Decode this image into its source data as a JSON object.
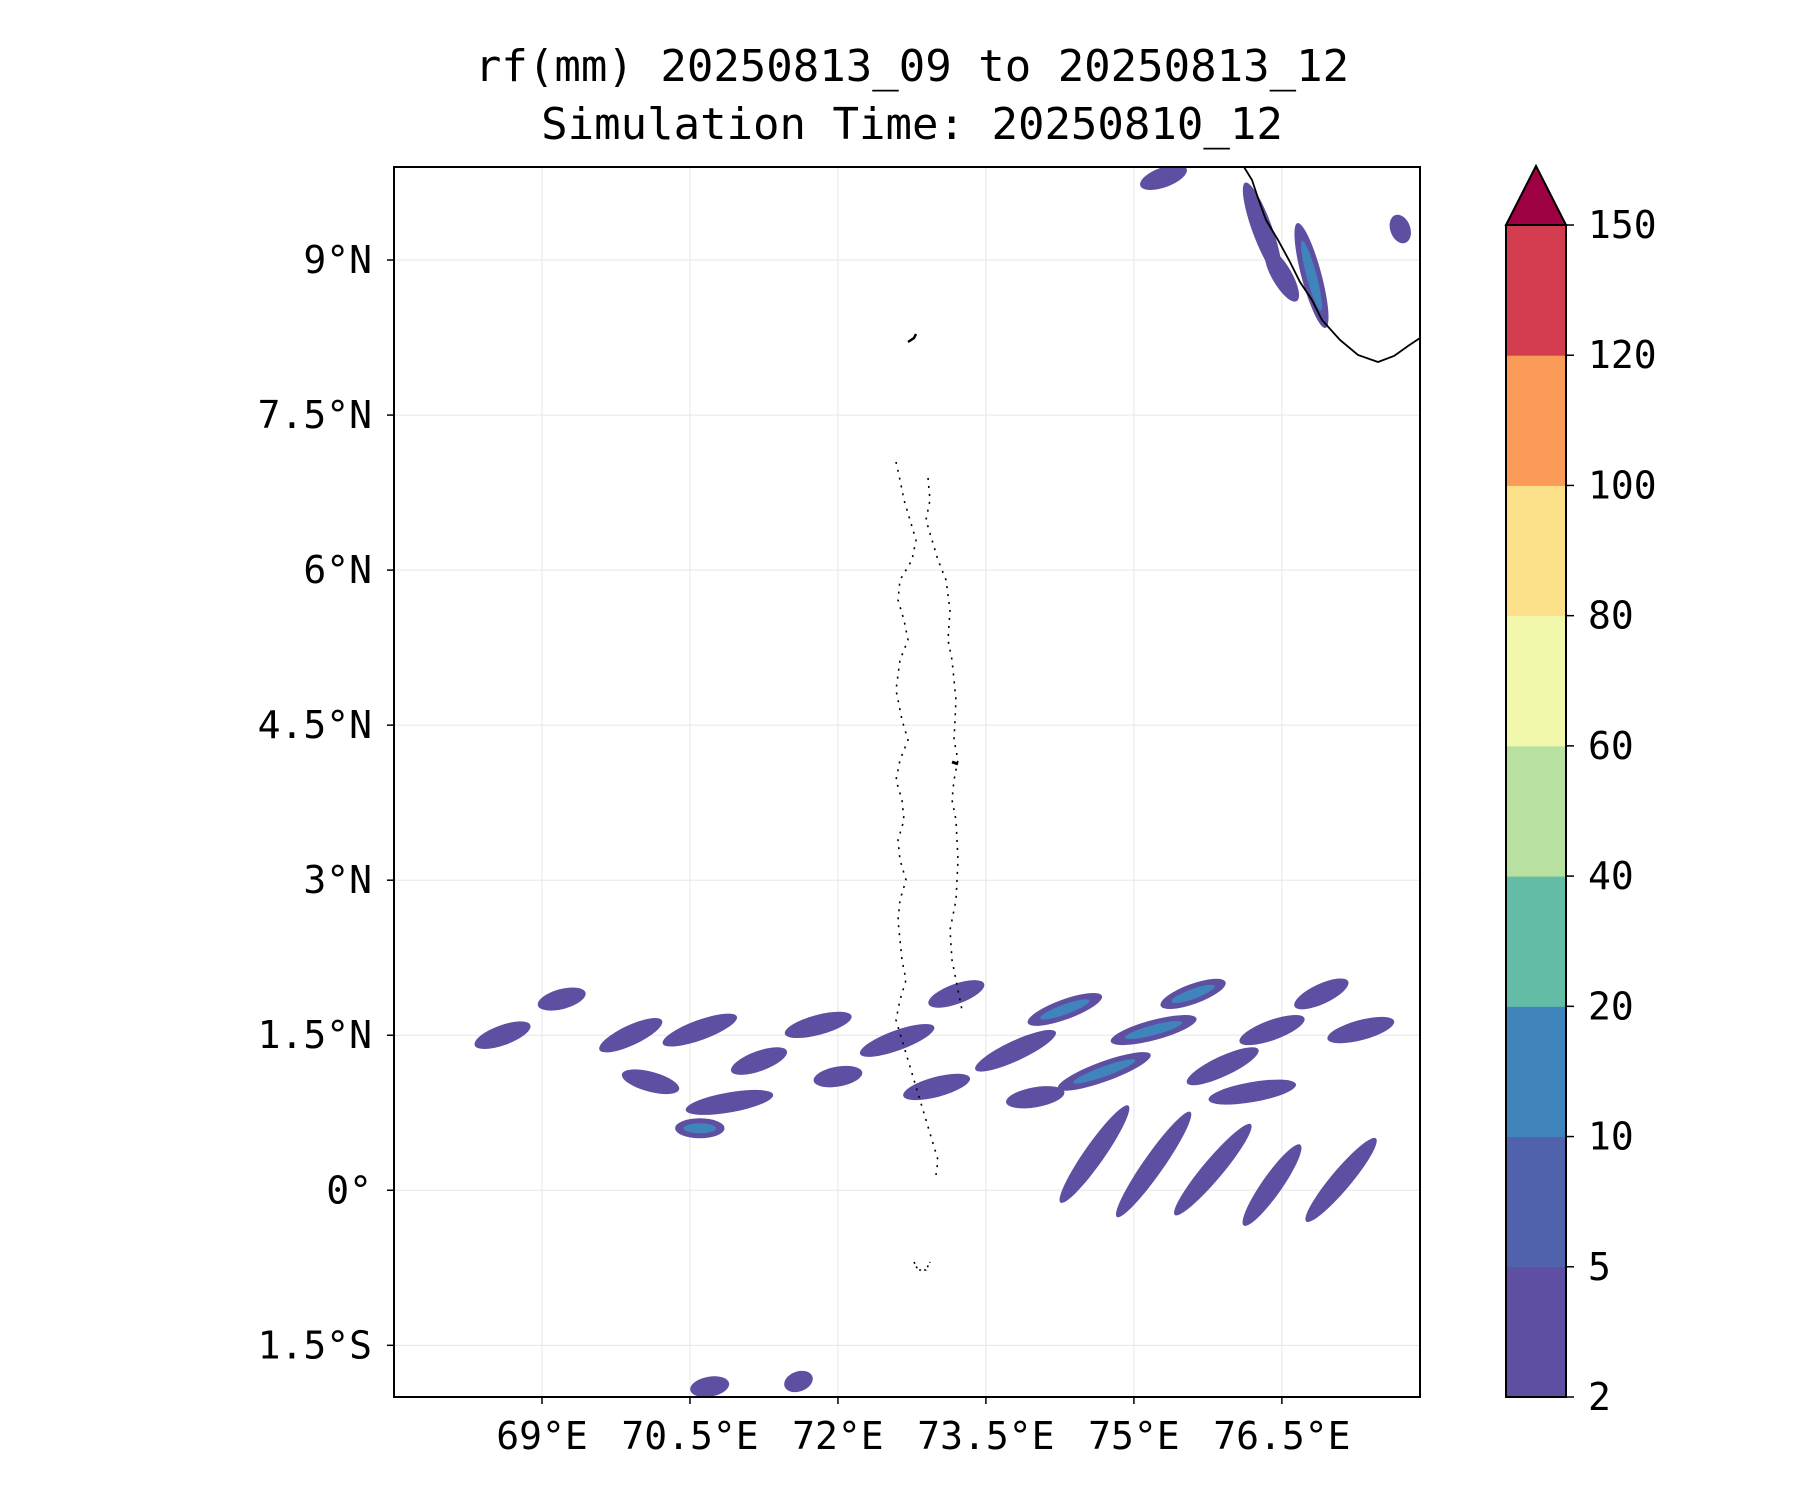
{
  "title": {
    "line1": "rf(mm) 20250813_09 to 20250813_12",
    "line2": "Simulation Time: 20250810_12"
  },
  "map": {
    "lon_range": [
      67.5,
      77.9
    ],
    "lat_range": [
      -2.0,
      9.9
    ],
    "lon_ticks": [
      {
        "value": 69.0,
        "label": "69°E"
      },
      {
        "value": 70.5,
        "label": "70.5°E"
      },
      {
        "value": 72.0,
        "label": "72°E"
      },
      {
        "value": 73.5,
        "label": "73.5°E"
      },
      {
        "value": 75.0,
        "label": "75°E"
      },
      {
        "value": 76.5,
        "label": "76.5°E"
      }
    ],
    "lat_ticks": [
      {
        "value": 9.0,
        "label": "9°N"
      },
      {
        "value": 7.5,
        "label": "7.5°N"
      },
      {
        "value": 6.0,
        "label": "6°N"
      },
      {
        "value": 4.5,
        "label": "4.5°N"
      },
      {
        "value": 3.0,
        "label": "3°N"
      },
      {
        "value": 1.5,
        "label": "1.5°N"
      },
      {
        "value": 0.0,
        "label": "0°"
      },
      {
        "value": -1.5,
        "label": "1.5°S"
      }
    ],
    "grid": true,
    "coastline_color": "#000000",
    "rain_bands": [
      {
        "lon": 68.6,
        "lat": 1.5,
        "len": 0.6,
        "ang": 20,
        "level": 0
      },
      {
        "lon": 69.2,
        "lat": 1.85,
        "len": 0.5,
        "ang": 15,
        "level": 0
      },
      {
        "lon": 69.9,
        "lat": 1.5,
        "len": 0.7,
        "ang": 25,
        "level": 0
      },
      {
        "lon": 70.6,
        "lat": 1.55,
        "len": 0.8,
        "ang": 20,
        "level": 0
      },
      {
        "lon": 70.1,
        "lat": 1.05,
        "len": 0.6,
        "ang": -15,
        "level": 0
      },
      {
        "lon": 70.9,
        "lat": 0.85,
        "len": 0.9,
        "ang": 10,
        "level": 0
      },
      {
        "lon": 70.6,
        "lat": 0.6,
        "len": 0.5,
        "ang": 0,
        "level": 1
      },
      {
        "lon": 71.2,
        "lat": 1.25,
        "len": 0.6,
        "ang": 20,
        "level": 0
      },
      {
        "lon": 71.8,
        "lat": 1.6,
        "len": 0.7,
        "ang": 15,
        "level": 0
      },
      {
        "lon": 72.0,
        "lat": 1.1,
        "len": 0.5,
        "ang": 10,
        "level": 0
      },
      {
        "lon": 72.6,
        "lat": 1.45,
        "len": 0.8,
        "ang": 20,
        "level": 0
      },
      {
        "lon": 73.0,
        "lat": 1.0,
        "len": 0.7,
        "ang": 15,
        "level": 0
      },
      {
        "lon": 73.2,
        "lat": 1.9,
        "len": 0.6,
        "ang": 20,
        "level": 0
      },
      {
        "lon": 73.8,
        "lat": 1.35,
        "len": 0.9,
        "ang": 25,
        "level": 0
      },
      {
        "lon": 74.3,
        "lat": 1.75,
        "len": 0.8,
        "ang": 20,
        "level": 1
      },
      {
        "lon": 74.0,
        "lat": 0.9,
        "len": 0.6,
        "ang": 10,
        "level": 0
      },
      {
        "lon": 74.7,
        "lat": 1.15,
        "len": 1.0,
        "ang": 20,
        "level": 1
      },
      {
        "lon": 75.2,
        "lat": 1.55,
        "len": 0.9,
        "ang": 15,
        "level": 1
      },
      {
        "lon": 75.6,
        "lat": 1.9,
        "len": 0.7,
        "ang": 20,
        "level": 1
      },
      {
        "lon": 75.9,
        "lat": 1.2,
        "len": 0.8,
        "ang": 25,
        "level": 0
      },
      {
        "lon": 76.4,
        "lat": 1.55,
        "len": 0.7,
        "ang": 20,
        "level": 0
      },
      {
        "lon": 76.9,
        "lat": 1.9,
        "len": 0.6,
        "ang": 25,
        "level": 0
      },
      {
        "lon": 77.3,
        "lat": 1.55,
        "len": 0.7,
        "ang": 15,
        "level": 0
      },
      {
        "lon": 76.2,
        "lat": 0.95,
        "len": 0.9,
        "ang": 10,
        "level": 0
      },
      {
        "lon": 74.6,
        "lat": 0.35,
        "len": 1.2,
        "ang": 55,
        "level": 0
      },
      {
        "lon": 75.2,
        "lat": 0.25,
        "len": 1.3,
        "ang": 55,
        "level": 0
      },
      {
        "lon": 75.8,
        "lat": 0.2,
        "len": 1.2,
        "ang": 50,
        "level": 0
      },
      {
        "lon": 76.4,
        "lat": 0.05,
        "len": 1.0,
        "ang": 55,
        "level": 0
      },
      {
        "lon": 77.1,
        "lat": 0.1,
        "len": 1.1,
        "ang": 50,
        "level": 0
      },
      {
        "lon": 76.8,
        "lat": 8.85,
        "len": 1.1,
        "ang": -75,
        "level": 1
      },
      {
        "lon": 76.3,
        "lat": 9.3,
        "len": 1.0,
        "ang": -70,
        "level": 0
      },
      {
        "lon": 76.5,
        "lat": 8.85,
        "len": 0.6,
        "ang": -60,
        "level": 0
      },
      {
        "lon": 75.3,
        "lat": 9.8,
        "len": 0.5,
        "ang": 20,
        "level": 0
      },
      {
        "lon": 77.7,
        "lat": 9.3,
        "len": 0.3,
        "ang": -70,
        "level": 0
      },
      {
        "lon": 70.7,
        "lat": -1.9,
        "len": 0.4,
        "ang": 10,
        "level": 0
      },
      {
        "lon": 71.6,
        "lat": -1.85,
        "len": 0.3,
        "ang": 20,
        "level": 0
      }
    ]
  },
  "colorbar": {
    "levels": [
      2,
      5,
      10,
      20,
      40,
      60,
      80,
      100,
      120,
      150
    ],
    "colors": [
      "#5e4fa2",
      "#4f62ab",
      "#3f84bb",
      "#63bda6",
      "#b8e0a0",
      "#f2f8ab",
      "#fde08a",
      "#fa9c58",
      "#d43d4f"
    ],
    "extend_color": "#9e0142",
    "extend": "max"
  }
}
